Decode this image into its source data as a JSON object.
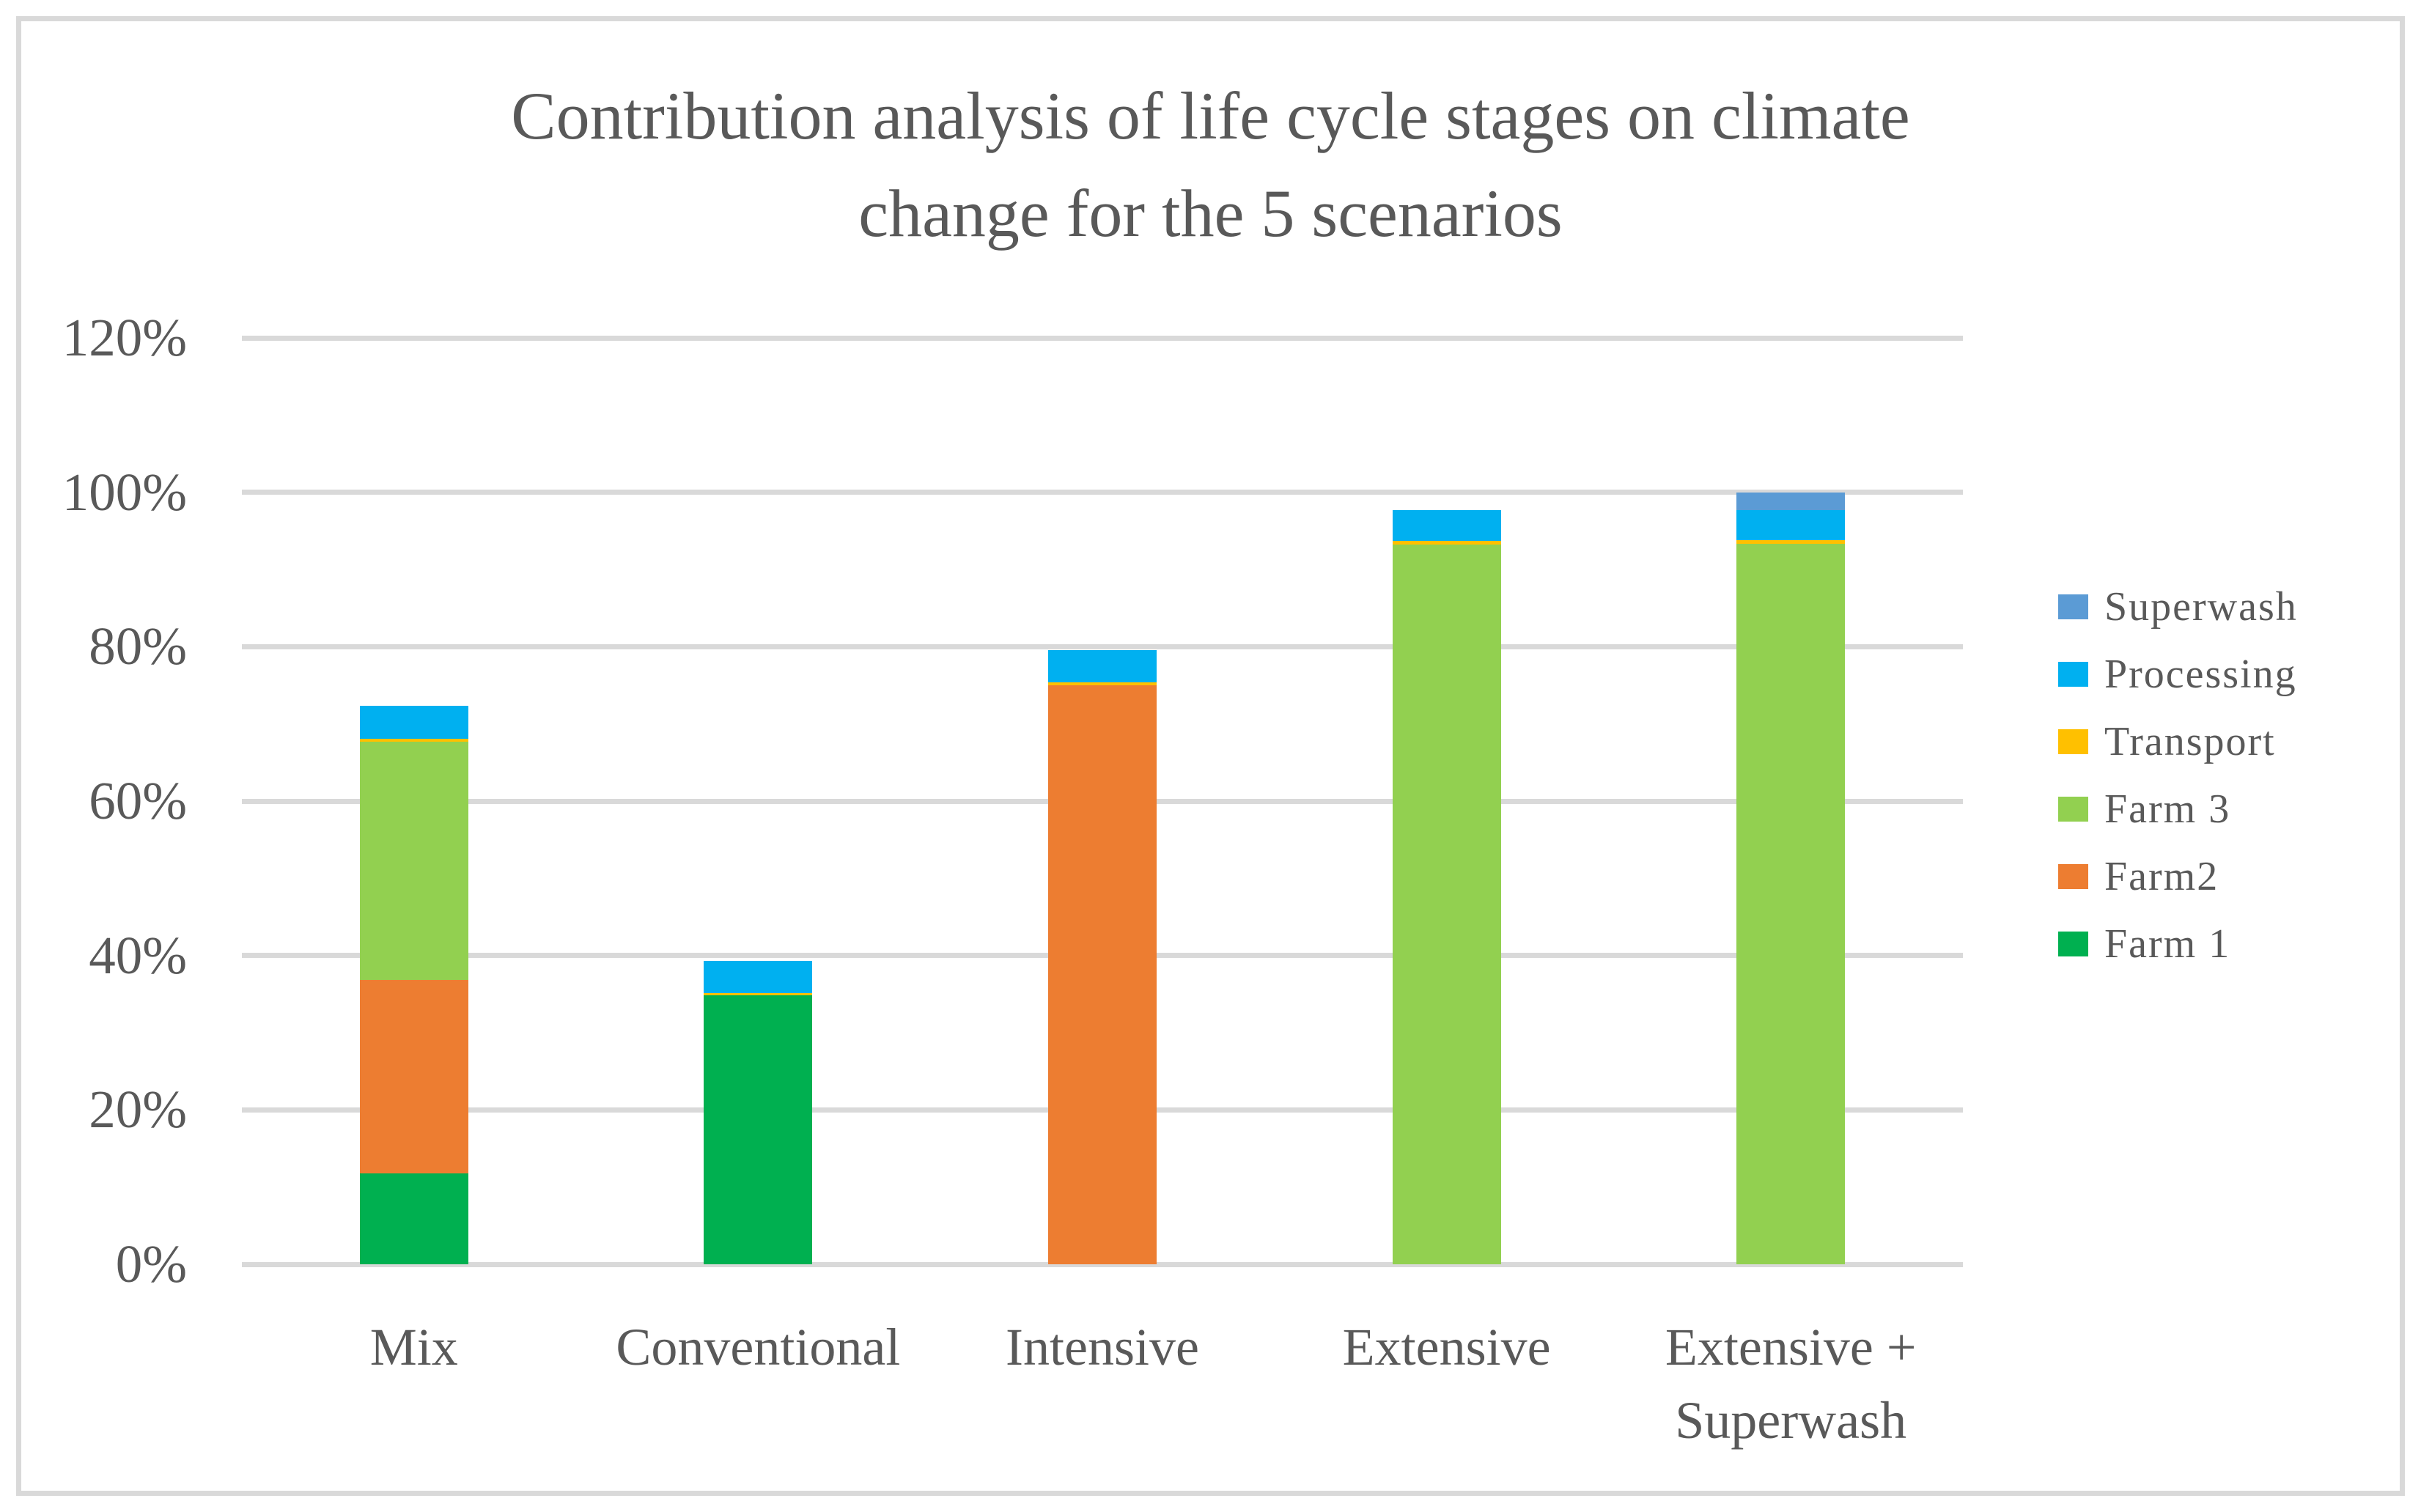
{
  "figure": {
    "title": "Contribution analysis of life cycle stages on climate\nchange for the 5 scenarios"
  },
  "chart_data": {
    "type": "bar",
    "stacked": true,
    "title": "Contribution analysis of life cycle stages on climate change for the 5 scenarios",
    "categories": [
      "Mix",
      "Conventional",
      "Intensive",
      "Extensive",
      "Extensive +\nSuperwash"
    ],
    "series": [
      {
        "name": "Farm 1",
        "color": "#00B050",
        "values": [
          11.8,
          34.8,
          0,
          0,
          0
        ]
      },
      {
        "name": "Farm2",
        "color": "#ED7D31",
        "values": [
          25.0,
          0,
          75.0,
          0,
          0
        ]
      },
      {
        "name": "Farm 3",
        "color": "#92D050",
        "values": [
          30.9,
          0,
          0,
          93.2,
          93.3
        ]
      },
      {
        "name": "Transport",
        "color": "#FFC000",
        "values": [
          0.4,
          0.3,
          0.4,
          0.5,
          0.5
        ]
      },
      {
        "name": "Processing",
        "color": "#00B0F0",
        "values": [
          4.2,
          4.2,
          4.2,
          4.0,
          3.9
        ]
      },
      {
        "name": "Superwash",
        "color": "#5B9BD5",
        "values": [
          0,
          0,
          0,
          0,
          2.3
        ]
      }
    ],
    "stack_totals": [
      72.3,
      39.3,
      79.6,
      97.7,
      100.0
    ],
    "xlabel": "",
    "ylabel": "",
    "y_ticks": [
      "0%",
      "20%",
      "40%",
      "60%",
      "80%",
      "100%",
      "120%"
    ],
    "y_tick_values": [
      0,
      20,
      40,
      60,
      80,
      100,
      120
    ],
    "ylim": [
      0,
      120
    ],
    "grid": true,
    "legend_position": "right",
    "legend_order": [
      "Superwash",
      "Processing",
      "Transport",
      "Farm 3",
      "Farm2",
      "Farm 1"
    ]
  },
  "colors": {
    "text": "#595959",
    "gridline": "#D9D9D9",
    "figure_border": "#D9D9D9",
    "background": "#FFFFFF"
  }
}
